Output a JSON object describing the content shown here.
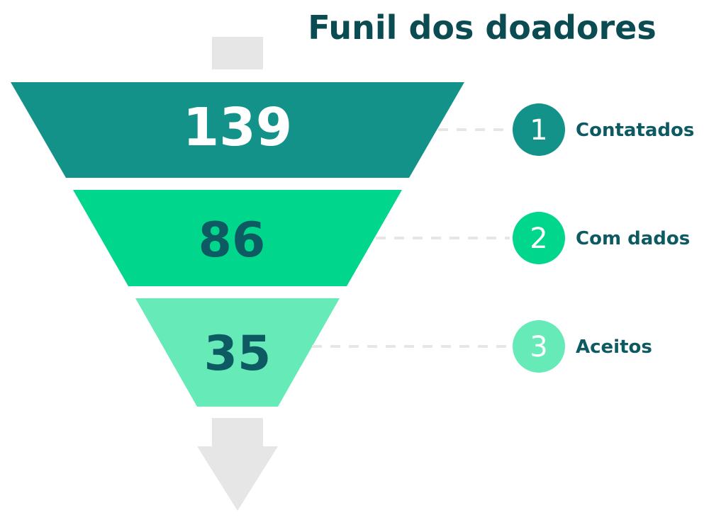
{
  "title": "Funil dos doadores",
  "chart_data": {
    "type": "funnel",
    "title": "Funil dos doadores",
    "categories": [
      "Contatados",
      "Com dados",
      "Aceitos"
    ],
    "values": [
      139,
      86,
      35
    ],
    "stages": [
      {
        "index": "1",
        "label": "Contatados",
        "value": 139,
        "value_text": "139",
        "color": "#13928a",
        "text_color": "#ffffff"
      },
      {
        "index": "2",
        "label": "Com dados",
        "value": 86,
        "value_text": "86",
        "color": "#00d68c",
        "text_color": "#0d5a62"
      },
      {
        "index": "3",
        "label": "Aceitos",
        "value": 35,
        "value_text": "35",
        "color": "#66ebb8",
        "text_color": "#0d5a62"
      }
    ]
  },
  "colors": {
    "title": "#0b4b52",
    "label": "#0d5a62",
    "arrow": "#e6e6e6",
    "connector": "#e6e6e6"
  }
}
